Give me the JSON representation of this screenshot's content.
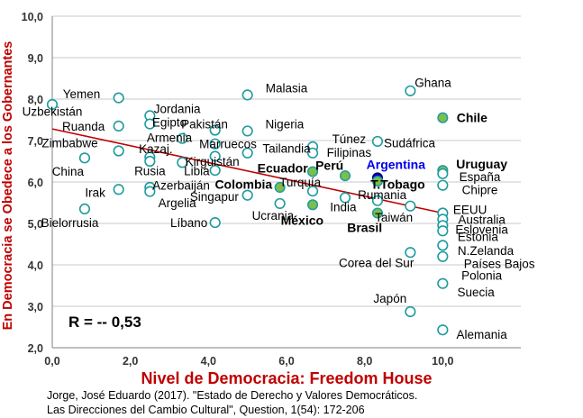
{
  "colors": {
    "ylabel": "#C00000",
    "xlabel": "#C00000",
    "hollow_marker": "#1E9BA0",
    "filled_marker": "#7DBE4B",
    "highlight_marker": "#0000CC",
    "trend": "#C00000"
  },
  "footer": {
    "line1": "Jorge, José Eduardo (2017). \"Estado de Derecho y Valores Democráticos.",
    "line2": "Las Direcciones del Cambio Cultural\", Question, 1(54): 172-206"
  },
  "chart_data": {
    "type": "scatter",
    "xlabel": "Nivel de Democracia: Freedom House",
    "ylabel": "En Democracia se Obedece a los Gobernantes",
    "xlim": [
      0,
      12
    ],
    "ylim": [
      2,
      10
    ],
    "x_ticks": [
      "0,0",
      "2,0",
      "4,0",
      "6,0",
      "8,0",
      "10,0"
    ],
    "y_ticks": [
      "2,0",
      "3,0",
      "4,0",
      "5,0",
      "6,0",
      "7,0",
      "8,0",
      "9,0",
      "10,0"
    ],
    "grid": "horizontal",
    "annotation": "R = -- 0,53",
    "trendline": {
      "x": [
        0,
        10
      ],
      "y": [
        7.28,
        5.25
      ]
    },
    "points": [
      {
        "name": "Uzbekistán",
        "x": 0.0,
        "y": 7.87,
        "style": "hollow"
      },
      {
        "name": "Yemen",
        "x": 1.7,
        "y": 8.03,
        "style": "hollow"
      },
      {
        "name": "Ruanda",
        "x": 1.7,
        "y": 7.35,
        "style": "hollow"
      },
      {
        "name": "Zimbabwe",
        "x": 1.7,
        "y": 6.75,
        "style": "hollow"
      },
      {
        "name": "China",
        "x": 0.83,
        "y": 6.58,
        "style": "hollow"
      },
      {
        "name": "Irak",
        "x": 1.7,
        "y": 5.82,
        "style": "hollow"
      },
      {
        "name": "Bielorrusia",
        "x": 0.83,
        "y": 5.35,
        "style": "hollow"
      },
      {
        "name": "Jordania",
        "x": 2.5,
        "y": 7.6,
        "style": "hollow"
      },
      {
        "name": "Egipto",
        "x": 2.5,
        "y": 7.4,
        "style": "hollow"
      },
      {
        "name": "Kazaj.",
        "x": 2.5,
        "y": 6.6,
        "style": "hollow"
      },
      {
        "name": "Rusia",
        "x": 2.5,
        "y": 6.5,
        "style": "hollow"
      },
      {
        "name": "Azerbaiján",
        "x": 2.5,
        "y": 5.87,
        "style": "hollow"
      },
      {
        "name": "Argelia",
        "x": 2.5,
        "y": 5.77,
        "style": "hollow"
      },
      {
        "name": "Armenia",
        "x": 3.33,
        "y": 7.05,
        "style": "hollow"
      },
      {
        "name": "Libia",
        "x": 3.33,
        "y": 6.47,
        "style": "hollow"
      },
      {
        "name": "Pakistán",
        "x": 4.17,
        "y": 7.25,
        "style": "hollow"
      },
      {
        "name": "Marruecos",
        "x": 4.17,
        "y": 6.92,
        "style": "hollow"
      },
      {
        "name": "Kirguistán",
        "x": 4.17,
        "y": 6.62,
        "style": "hollow"
      },
      {
        "name": "Singapur",
        "x": 4.17,
        "y": 6.28,
        "style": "hollow"
      },
      {
        "name": "Líbano",
        "x": 4.17,
        "y": 5.02,
        "style": "hollow"
      },
      {
        "name": "Malasia",
        "x": 5.0,
        "y": 8.1,
        "style": "hollow"
      },
      {
        "name": "Nigeria",
        "x": 5.0,
        "y": 7.23,
        "style": "hollow"
      },
      {
        "name": "Tailandia",
        "x": 5.0,
        "y": 6.7,
        "style": "hollow"
      },
      {
        "name": "Colombia",
        "x": 5.0,
        "y": 5.68,
        "style": "hollow"
      },
      {
        "name": "Ucrania",
        "x": 5.83,
        "y": 5.48,
        "style": "hollow"
      },
      {
        "name": "Ecuador",
        "x": 5.83,
        "y": 5.87,
        "style": "filled"
      },
      {
        "name": "Túnez",
        "x": 6.67,
        "y": 6.85,
        "style": "hollow"
      },
      {
        "name": "Filipinas",
        "x": 6.67,
        "y": 6.7,
        "style": "hollow"
      },
      {
        "name": "Perú",
        "x": 6.67,
        "y": 6.25,
        "style": "filled"
      },
      {
        "name": "Turquía",
        "x": 6.67,
        "y": 5.78,
        "style": "hollow"
      },
      {
        "name": "México",
        "x": 6.67,
        "y": 5.45,
        "style": "filled"
      },
      {
        "name": "India",
        "x": 7.5,
        "y": 5.62,
        "style": "hollow"
      },
      {
        "name": "Perú-2",
        "x": 7.5,
        "y": 6.15,
        "style": "filled"
      },
      {
        "name": "Sudáfrica",
        "x": 8.33,
        "y": 6.98,
        "style": "hollow"
      },
      {
        "name": "Argentina",
        "x": 8.33,
        "y": 6.1,
        "style": "highlight"
      },
      {
        "name": "T.Tobago",
        "x": 8.33,
        "y": 6.02,
        "style": "filled"
      },
      {
        "name": "Rumania",
        "x": 8.33,
        "y": 5.55,
        "style": "hollow"
      },
      {
        "name": "Brasil",
        "x": 8.33,
        "y": 5.25,
        "style": "filled"
      },
      {
        "name": "Taiwán",
        "x": 9.17,
        "y": 5.42,
        "style": "hollow"
      },
      {
        "name": "Ghana",
        "x": 9.17,
        "y": 8.2,
        "style": "hollow"
      },
      {
        "name": "Corea del Sur",
        "x": 9.17,
        "y": 4.3,
        "style": "hollow"
      },
      {
        "name": "Japón",
        "x": 9.17,
        "y": 2.87,
        "style": "hollow"
      },
      {
        "name": "Chile",
        "x": 10.0,
        "y": 7.55,
        "style": "filled"
      },
      {
        "name": "Uruguay",
        "x": 10.0,
        "y": 6.28,
        "style": "filled"
      },
      {
        "name": "España",
        "x": 10.0,
        "y": 6.2,
        "style": "hollow"
      },
      {
        "name": "Chipre",
        "x": 10.0,
        "y": 5.92,
        "style": "hollow"
      },
      {
        "name": "EEUU",
        "x": 10.0,
        "y": 5.25,
        "style": "hollow"
      },
      {
        "name": "Australia",
        "x": 10.0,
        "y": 5.1,
        "style": "hollow"
      },
      {
        "name": "Eslovenia",
        "x": 10.0,
        "y": 4.95,
        "style": "hollow"
      },
      {
        "name": "Estonia",
        "x": 10.0,
        "y": 4.82,
        "style": "hollow"
      },
      {
        "name": "N.Zelanda",
        "x": 10.0,
        "y": 4.47,
        "style": "hollow"
      },
      {
        "name": "Países Bajos",
        "x": 10.0,
        "y": 4.2,
        "style": "hollow"
      },
      {
        "name": "Suecia",
        "x": 10.0,
        "y": 3.55,
        "style": "hollow"
      },
      {
        "name": "Alemania",
        "x": 10.0,
        "y": 2.43,
        "style": "hollow"
      }
    ],
    "labels": [
      {
        "text": "Yemen",
        "x": 0.75,
        "y": 8.13,
        "bold": false
      },
      {
        "text": "Uzbekistán",
        "x": 0.0,
        "y": 7.71,
        "bold": false
      },
      {
        "text": "Ruanda",
        "x": 0.8,
        "y": 7.35,
        "bold": false
      },
      {
        "text": "Zimbabwe",
        "x": 0.45,
        "y": 6.95,
        "bold": false
      },
      {
        "text": "China",
        "x": 0.4,
        "y": 6.26,
        "bold": false
      },
      {
        "text": "Irak",
        "x": 1.1,
        "y": 5.75,
        "bold": false
      },
      {
        "text": "Bielorrusia",
        "x": 0.45,
        "y": 5.02,
        "bold": false
      },
      {
        "text": "Jordania",
        "x": 3.2,
        "y": 7.77,
        "bold": false
      },
      {
        "text": "Egipto",
        "x": 3.0,
        "y": 7.45,
        "bold": false
      },
      {
        "text": "Armenia",
        "x": 3.0,
        "y": 7.08,
        "bold": false
      },
      {
        "text": "Kazaj.",
        "x": 2.65,
        "y": 6.8,
        "bold": false
      },
      {
        "text": "Rusia",
        "x": 2.5,
        "y": 6.27,
        "bold": false
      },
      {
        "text": "Azerbaiján",
        "x": 3.3,
        "y": 5.92,
        "bold": false
      },
      {
        "text": "Argelia",
        "x": 3.2,
        "y": 5.5,
        "bold": false
      },
      {
        "text": "Pakistán",
        "x": 3.9,
        "y": 7.4,
        "bold": false
      },
      {
        "text": "Marruecos",
        "x": 4.5,
        "y": 6.92,
        "bold": false
      },
      {
        "text": "Kirguistán",
        "x": 4.1,
        "y": 6.5,
        "bold": false
      },
      {
        "text": "Libia",
        "x": 3.7,
        "y": 6.27,
        "bold": false
      },
      {
        "text": "Singapur",
        "x": 4.15,
        "y": 5.65,
        "bold": false
      },
      {
        "text": "Líbano",
        "x": 3.5,
        "y": 5.02,
        "bold": false
      },
      {
        "text": "Malasia",
        "x": 6.0,
        "y": 8.27,
        "bold": false
      },
      {
        "text": "Nigeria",
        "x": 5.95,
        "y": 7.4,
        "bold": false
      },
      {
        "text": "Tailandia",
        "x": 6.0,
        "y": 6.82,
        "bold": false
      },
      {
        "text": "Ecuador",
        "x": 5.9,
        "y": 6.34,
        "bold": true
      },
      {
        "text": "Colombia",
        "x": 4.9,
        "y": 5.95,
        "bold": true
      },
      {
        "text": "Ucrania",
        "x": 5.65,
        "y": 5.2,
        "bold": false
      },
      {
        "text": "Túnez",
        "x": 7.6,
        "y": 7.04,
        "bold": false
      },
      {
        "text": "Filipinas",
        "x": 7.6,
        "y": 6.72,
        "bold": false
      },
      {
        "text": "Perú",
        "x": 7.1,
        "y": 6.4,
        "bold": true
      },
      {
        "text": "Turquía",
        "x": 6.35,
        "y": 6.0,
        "bold": false
      },
      {
        "text": "México",
        "x": 6.4,
        "y": 5.08,
        "bold": true
      },
      {
        "text": "India",
        "x": 7.45,
        "y": 5.4,
        "bold": false
      },
      {
        "text": "Argentina",
        "x": 8.8,
        "y": 6.42,
        "bold": true,
        "highlight": true
      },
      {
        "text": "T.Tobago",
        "x": 8.85,
        "y": 5.95,
        "bold": true
      },
      {
        "text": "Rumania",
        "x": 8.45,
        "y": 5.7,
        "bold": false
      },
      {
        "text": "Brasil",
        "x": 8.0,
        "y": 4.9,
        "bold": true
      },
      {
        "text": "Taiwán",
        "x": 8.75,
        "y": 5.15,
        "bold": false
      },
      {
        "text": "Sudáfrica",
        "x": 9.15,
        "y": 6.95,
        "bold": false
      },
      {
        "text": "Ghana",
        "x": 9.75,
        "y": 8.4,
        "bold": false
      },
      {
        "text": "Corea del Sur",
        "x": 8.3,
        "y": 4.05,
        "bold": false
      },
      {
        "text": "Japón",
        "x": 8.65,
        "y": 3.2,
        "bold": false
      },
      {
        "text": "Chile",
        "x": 10.75,
        "y": 7.55,
        "bold": true
      },
      {
        "text": "Uruguay",
        "x": 11.0,
        "y": 6.44,
        "bold": true
      },
      {
        "text": "España",
        "x": 10.95,
        "y": 6.13,
        "bold": false
      },
      {
        "text": "Chipre",
        "x": 10.95,
        "y": 5.82,
        "bold": false
      },
      {
        "text": "EEUU",
        "x": 10.7,
        "y": 5.34,
        "bold": false
      },
      {
        "text": "Australia",
        "x": 11.0,
        "y": 5.1,
        "bold": false
      },
      {
        "text": "Eslovenia",
        "x": 11.0,
        "y": 4.86,
        "bold": false
      },
      {
        "text": "Estonia",
        "x": 10.9,
        "y": 4.68,
        "bold": false
      },
      {
        "text": "N.Zelanda",
        "x": 11.1,
        "y": 4.35,
        "bold": false
      },
      {
        "text": "Países Bajos",
        "x": 11.45,
        "y": 4.03,
        "bold": false
      },
      {
        "text": "Polonia",
        "x": 11.0,
        "y": 3.75,
        "bold": false
      },
      {
        "text": "Suecia",
        "x": 10.85,
        "y": 3.35,
        "bold": false
      },
      {
        "text": "Alemania",
        "x": 11.0,
        "y": 2.33,
        "bold": false
      }
    ]
  }
}
